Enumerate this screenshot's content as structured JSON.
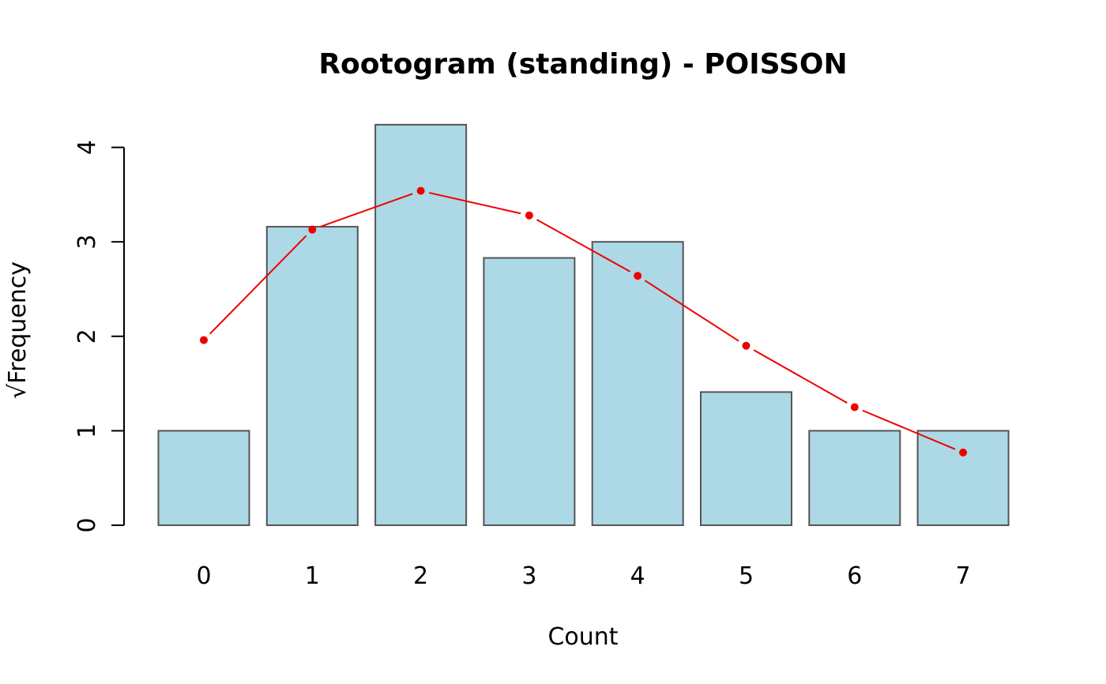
{
  "chart_data": {
    "type": "bar",
    "title": "Rootogram (standing) - POISSON",
    "xlabel": "Count",
    "ylabel": "√Frequency",
    "categories": [
      "0",
      "1",
      "2",
      "3",
      "4",
      "5",
      "6",
      "7"
    ],
    "series": [
      {
        "type": "bar",
        "values": [
          1.0,
          3.16,
          4.24,
          2.83,
          3.0,
          1.41,
          1.0,
          1.0
        ]
      },
      {
        "type": "line",
        "values": [
          1.96,
          3.13,
          3.54,
          3.28,
          2.64,
          1.9,
          1.25,
          0.77
        ]
      }
    ],
    "ylim": [
      0,
      4.24
    ],
    "yticks": [
      0,
      1,
      2,
      3,
      4
    ],
    "grid": false,
    "colors": {
      "bar_fill": "#add8e6",
      "bar_border": "#555555",
      "fit": "#ee0000"
    }
  }
}
